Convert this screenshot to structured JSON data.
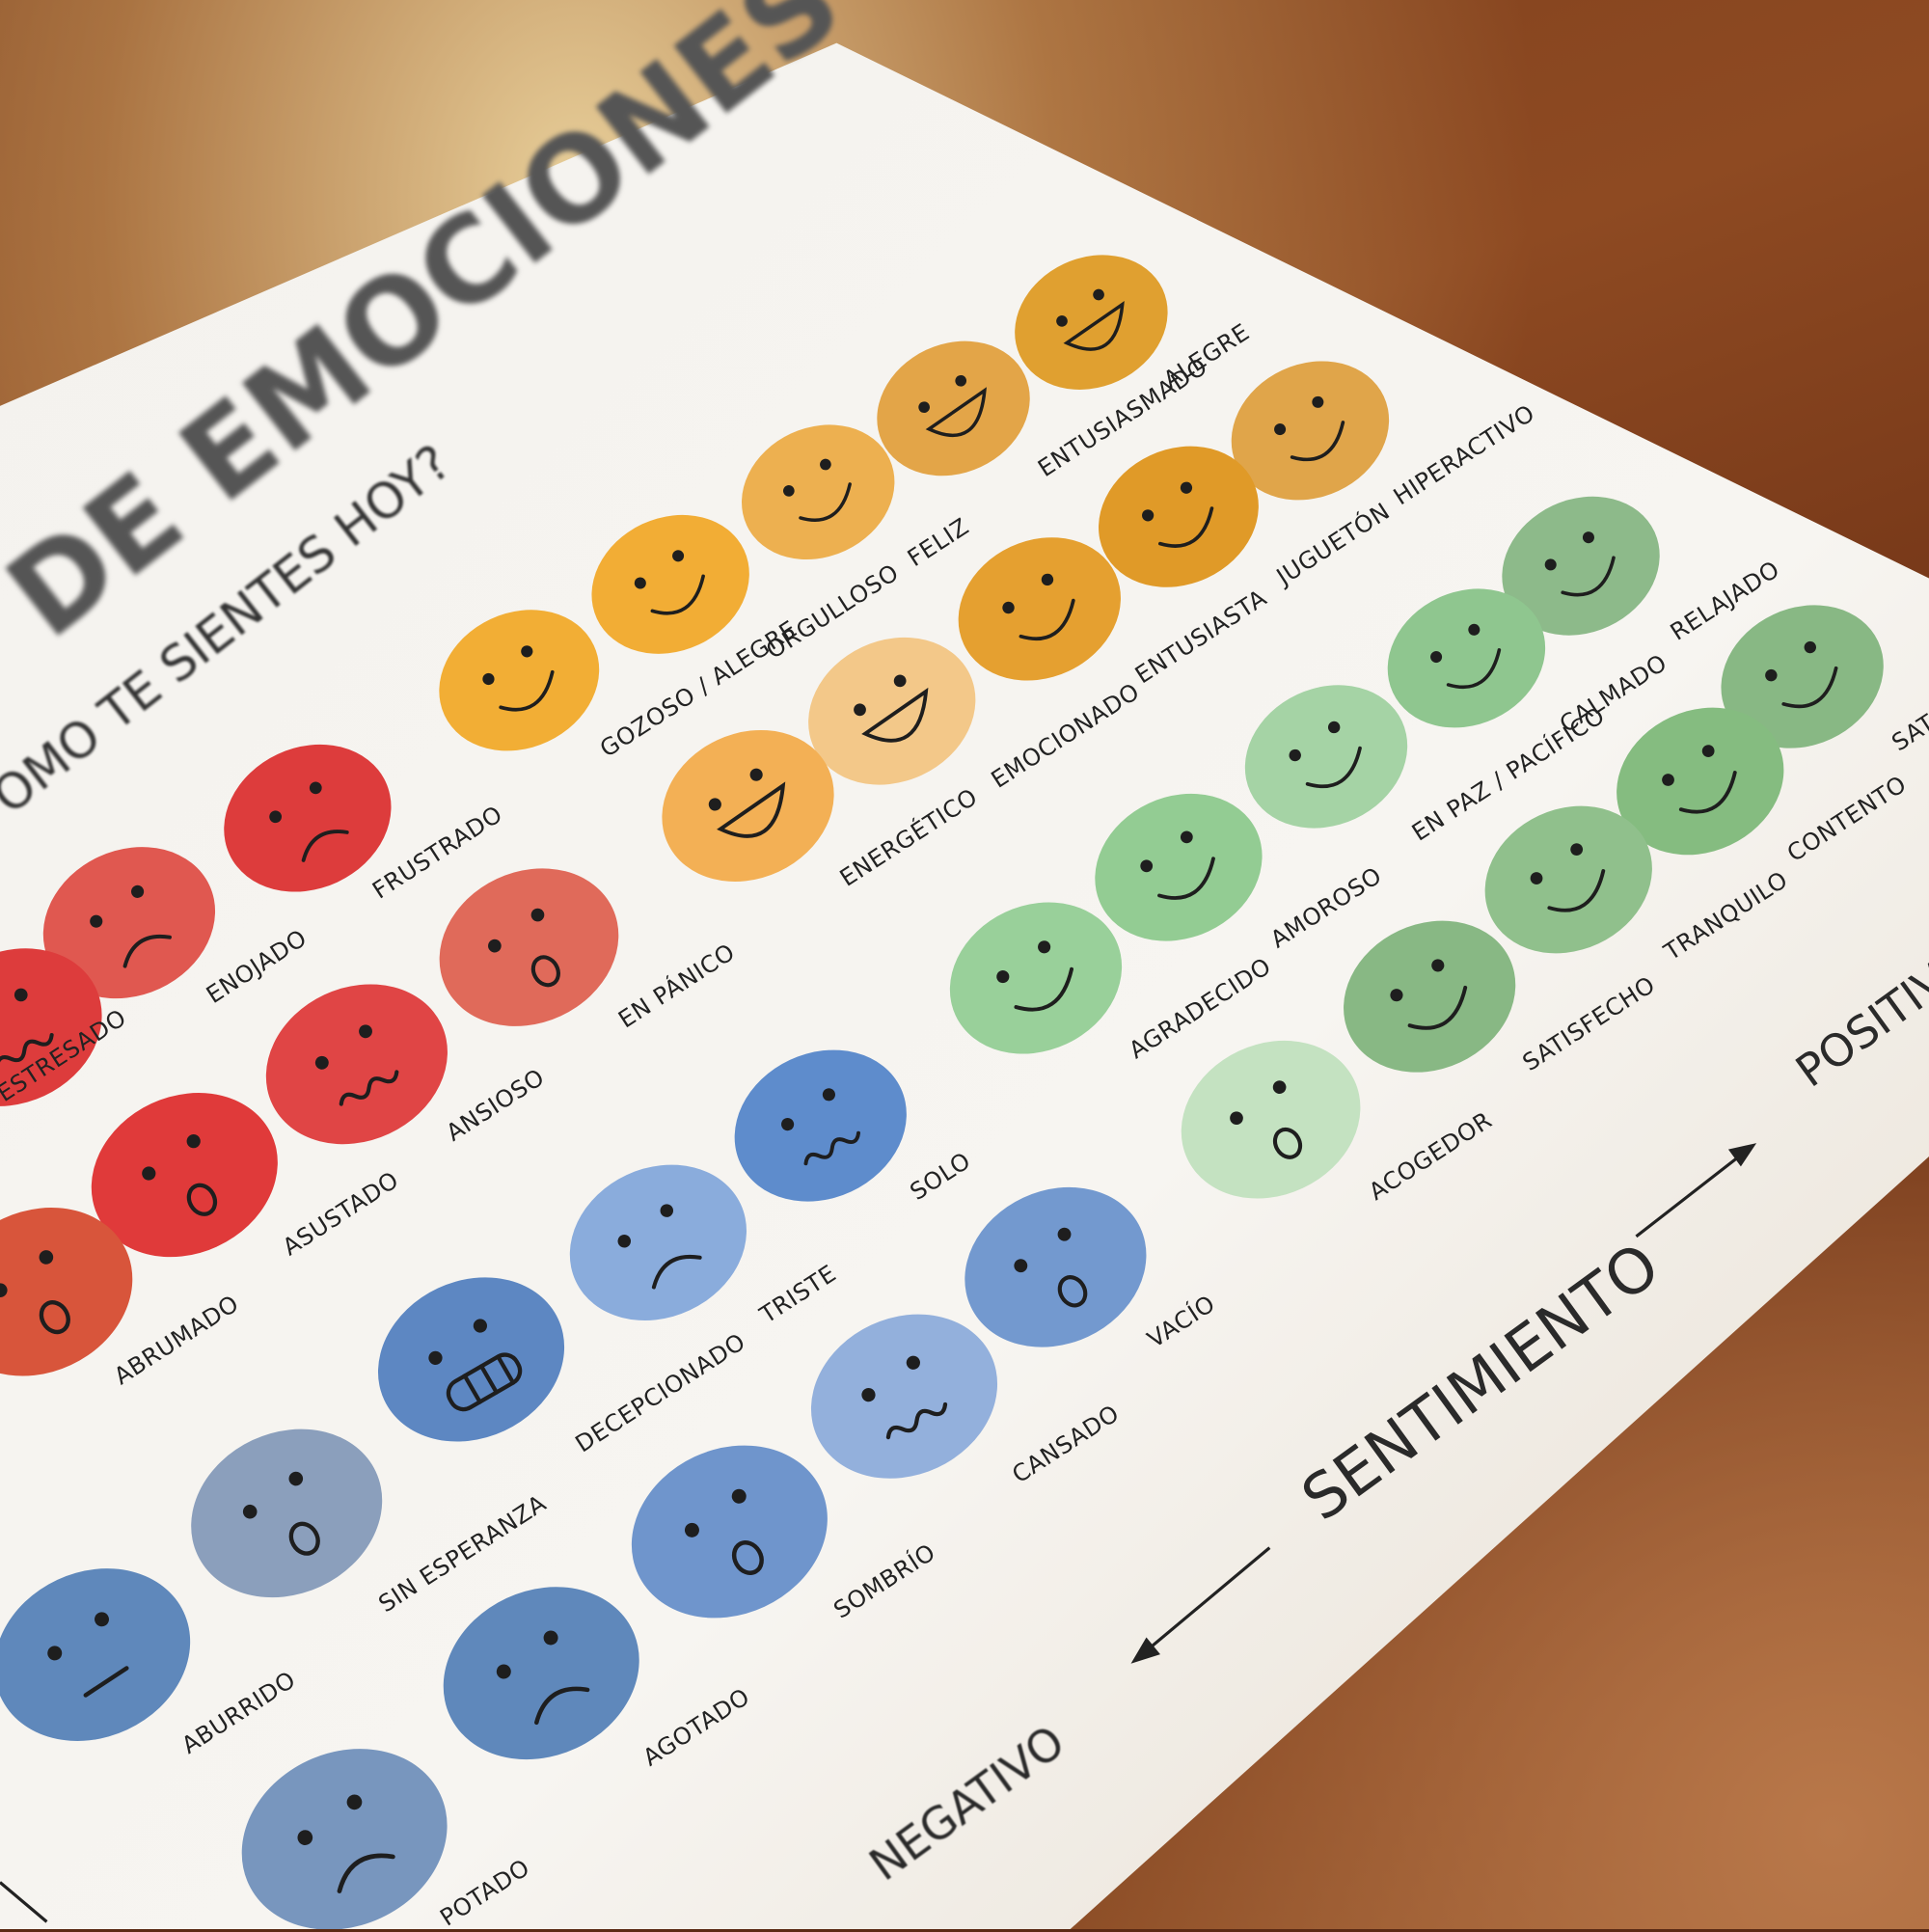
{
  "poster": {
    "title": "DE EMOCIONES",
    "subtitle": "OMO TE SIENTES HOY?",
    "axis_label": "SENTIMIENTO",
    "axis_positive": "POSITIVO",
    "axis_negative": "NEGATIVO"
  },
  "emotions": [
    {
      "label": "ALEGRE",
      "color": "#e0a030",
      "expression": "big-smile"
    },
    {
      "label": "ENTUSIASMADO",
      "color": "#e3a548",
      "expression": "big-smile"
    },
    {
      "label": "HIPERACTIVO",
      "color": "#e0a54a",
      "expression": "smile"
    },
    {
      "label": "FELIZ",
      "color": "#edb050",
      "expression": "smile"
    },
    {
      "label": "JUGUETÓN",
      "color": "#e09a28",
      "expression": "smile"
    },
    {
      "label": "ORGULLOSO",
      "color": "#f2ad35",
      "expression": "smile"
    },
    {
      "label": "ENTUSIASTA",
      "color": "#e5a030",
      "expression": "smile"
    },
    {
      "label": "GOZOSO / ALEGRE",
      "color": "#f2ae35",
      "expression": "smile"
    },
    {
      "label": "EMOCIONADO",
      "color": "#f3c889",
      "expression": "big-smile"
    },
    {
      "label": "ENERGÉTICO",
      "color": "#f3b055",
      "expression": "big-smile"
    },
    {
      "label": "FRUSTRADO",
      "color": "#dd3c3c",
      "expression": "frown"
    },
    {
      "label": "ENOJADO",
      "color": "#e05850",
      "expression": "frown"
    },
    {
      "label": "EN PÁNICO",
      "color": "#e06a5a",
      "expression": "o"
    },
    {
      "label": "ESTRESADO",
      "color": "#dd3c3c",
      "expression": "wavy"
    },
    {
      "label": "ANSIOSO",
      "color": "#e04545",
      "expression": "wavy"
    },
    {
      "label": "ASUSTADO",
      "color": "#e03a3a",
      "expression": "o"
    },
    {
      "label": "ABRUMADO",
      "color": "#d8553b",
      "expression": "o"
    },
    {
      "label": "SOLO",
      "color": "#5e8ccc",
      "expression": "wavy"
    },
    {
      "label": "TRISTE",
      "color": "#8aacdc",
      "expression": "frown"
    },
    {
      "label": "VACÍO",
      "color": "#7399cf",
      "expression": "o"
    },
    {
      "label": "DECEPCIONADO",
      "color": "#5d87c2",
      "expression": "teeth"
    },
    {
      "label": "CANSADO",
      "color": "#93b0dc",
      "expression": "wavy"
    },
    {
      "label": "SIN ESPERANZA",
      "color": "#8b9fbc",
      "expression": "o"
    },
    {
      "label": "SOMBRÍO",
      "color": "#6f95cc",
      "expression": "o"
    },
    {
      "label": "ABURRIDO",
      "color": "#5f88bb",
      "expression": "flat"
    },
    {
      "label": "AGOTADO",
      "color": "#5f88bb",
      "expression": "frown"
    },
    {
      "label": "POTADO",
      "color": "#7896be",
      "expression": "frown"
    },
    {
      "label": "RELAJADO",
      "color": "#8dba8a",
      "expression": "smile"
    },
    {
      "label": "CALMADO",
      "color": "#8fc68f",
      "expression": "smile"
    },
    {
      "label": "SATIS",
      "color": "#88b884",
      "expression": "smile"
    },
    {
      "label": "EN PAZ / PACÍFICO",
      "color": "#a5d3a5",
      "expression": "smile"
    },
    {
      "label": "CONTENTO",
      "color": "#85bc80",
      "expression": "smile"
    },
    {
      "label": "AMOROSO",
      "color": "#93cc93",
      "expression": "smile"
    },
    {
      "label": "TRANQUILO",
      "color": "#90c08c",
      "expression": "smile"
    },
    {
      "label": "AGRADECIDO",
      "color": "#99d09a",
      "expression": "smile"
    },
    {
      "label": "SATISFECHO",
      "color": "#88b884",
      "expression": "smile"
    },
    {
      "label": "ACOGEDOR",
      "color": "#c4e2c1",
      "expression": "o"
    }
  ]
}
